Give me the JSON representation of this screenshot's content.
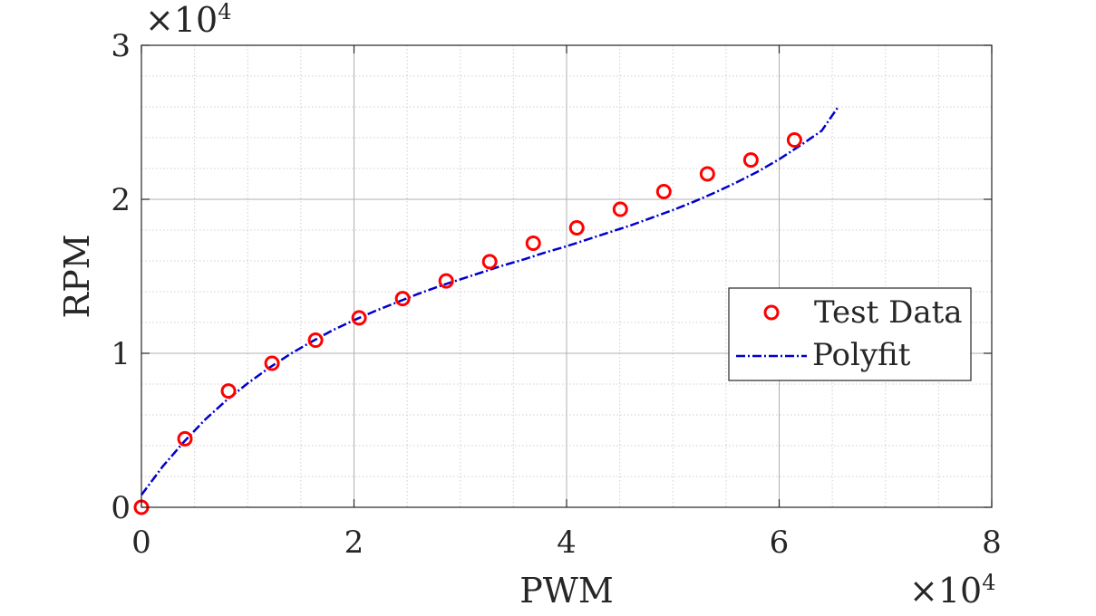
{
  "chart_data": {
    "type": "scatter",
    "xlabel": "PWM",
    "ylabel": "RPM",
    "x_multiplier": "×10",
    "x_multiplier_exp": "4",
    "y_multiplier": "×10",
    "y_multiplier_exp": "4",
    "xlim": [
      0,
      80000
    ],
    "ylim": [
      0,
      30000
    ],
    "xticks": [
      0,
      20000,
      40000,
      60000,
      80000
    ],
    "xtick_labels": [
      "0",
      "2",
      "4",
      "6",
      "8"
    ],
    "yticks": [
      0,
      10000,
      20000,
      30000
    ],
    "ytick_labels": [
      "0",
      "1",
      "2",
      "3"
    ],
    "grid": true,
    "minor_grid": true,
    "legend_position": "right",
    "series": [
      {
        "name": "Test Data",
        "style": "markers",
        "color": "#ff0000",
        "x": [
          0,
          4096,
          8192,
          12288,
          16384,
          20480,
          24576,
          28672,
          32768,
          36864,
          40960,
          45056,
          49152,
          53248,
          57344,
          61440
        ],
        "y": [
          0,
          4450,
          7550,
          9350,
          10850,
          12300,
          13550,
          14700,
          15950,
          17150,
          18150,
          19350,
          20500,
          21650,
          22550,
          23850
        ]
      },
      {
        "name": "Polyfit",
        "style": "dash-dot line",
        "color": "#0000cc",
        "x": [
          0,
          2000,
          4000,
          6000,
          8000,
          10000,
          12000,
          14000,
          16000,
          18000,
          20000,
          22000,
          24000,
          26000,
          28000,
          30000,
          32000,
          34000,
          36000,
          38000,
          40000,
          42000,
          44000,
          46000,
          48000,
          50000,
          52000,
          54000,
          56000,
          58000,
          60000,
          62000,
          64000,
          65500
        ],
        "y": [
          800,
          2650,
          4250,
          5700,
          6950,
          8050,
          9050,
          9950,
          10750,
          11500,
          12150,
          12750,
          13300,
          13850,
          14350,
          14800,
          15250,
          15700,
          16100,
          16550,
          16950,
          17400,
          17850,
          18300,
          18800,
          19300,
          19850,
          20450,
          21100,
          21800,
          22600,
          23500,
          24450,
          25950
        ]
      }
    ]
  }
}
